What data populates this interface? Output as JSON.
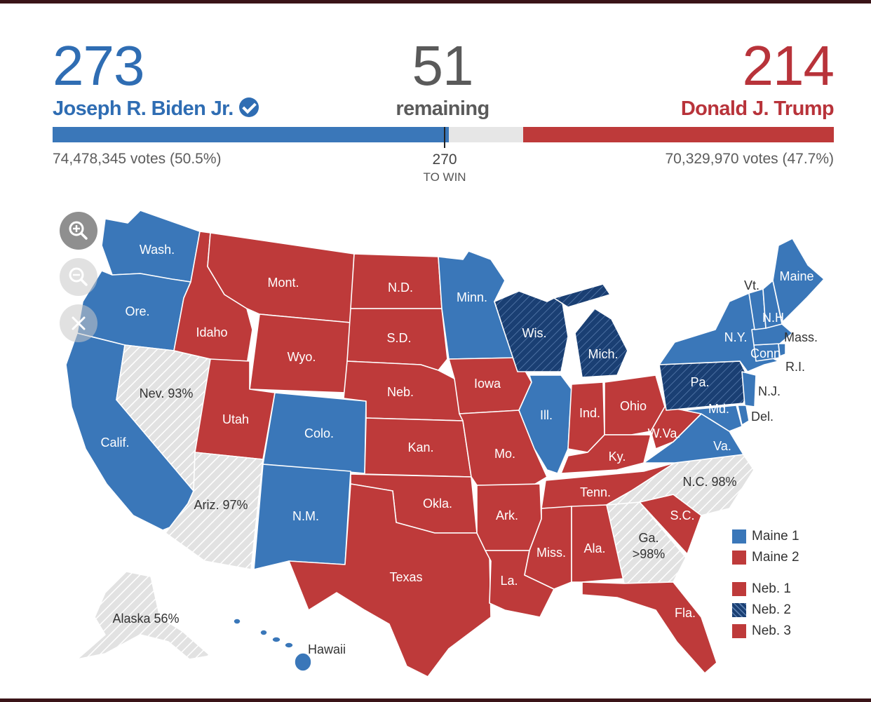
{
  "colors": {
    "dem": "#3a77b9",
    "dem_flip": "#1a3f73",
    "rep": "#be3a3a",
    "pending": "#e2e2e2",
    "dem_text": "#2f6db3",
    "rep_text": "#b8333a",
    "remaining_text": "#5a5a5a"
  },
  "header": {
    "biden": {
      "ev": "273",
      "name": "Joseph R. Biden Jr.",
      "votes": "74,478,345 votes (50.5%)",
      "verified_icon": "check-circle-icon"
    },
    "remaining": {
      "ev": "51",
      "label": "remaining"
    },
    "trump": {
      "ev": "214",
      "name": "Donald J. Trump",
      "votes": "70,329,970 votes (47.7%)"
    },
    "threshold": {
      "value": "270",
      "label": "TO WIN"
    }
  },
  "progress": {
    "total": 538,
    "dem": 273,
    "remaining": 51,
    "rep": 214,
    "threshold": 270
  },
  "map": {
    "controls": [
      {
        "icon": "zoom-in-icon"
      },
      {
        "icon": "zoom-out-icon"
      },
      {
        "icon": "close-icon"
      }
    ],
    "labels": {
      "wash": "Wash.",
      "ore": "Ore.",
      "calif": "Calif.",
      "idaho": "Idaho",
      "nev": "Nev. 93%",
      "mont": "Mont.",
      "wyo": "Wyo.",
      "utah": "Utah",
      "colo": "Colo.",
      "ariz": "Ariz. 97%",
      "nm": "N.M.",
      "nd": "N.D.",
      "sd": "S.D.",
      "neb": "Neb.",
      "kan": "Kan.",
      "okla": "Okla.",
      "texas": "Texas",
      "minn": "Minn.",
      "iowa": "Iowa",
      "mo": "Mo.",
      "ark": "Ark.",
      "la": "La.",
      "wis": "Wis.",
      "ill": "Ill.",
      "mich": "Mich.",
      "ind": "Ind.",
      "ohio": "Ohio",
      "ky": "Ky.",
      "tenn": "Tenn.",
      "miss": "Miss.",
      "ala": "Ala.",
      "ga": "Ga.",
      "ga_pct": ">98%",
      "fla": "Fla.",
      "sc": "S.C.",
      "nc": "N.C. 98%",
      "va": "Va.",
      "wva": "W.Va.",
      "pa": "Pa.",
      "ny": "N.Y.",
      "vt": "Vt.",
      "nh": "N.H.",
      "maine": "Maine",
      "mass": "Mass.",
      "conn": "Conn.",
      "ri": "R.I.",
      "nj": "N.J.",
      "md": "Md.",
      "del": "Del.",
      "alaska": "Alaska 56%",
      "hawaii": "Hawaii"
    }
  },
  "legend": [
    {
      "label": "Maine 1",
      "result": "dem"
    },
    {
      "label": "Maine 2",
      "result": "rep"
    },
    {
      "label": "Neb. 1",
      "result": "rep"
    },
    {
      "label": "Neb. 2",
      "result": "dem_flip"
    },
    {
      "label": "Neb. 3",
      "result": "rep"
    }
  ]
}
